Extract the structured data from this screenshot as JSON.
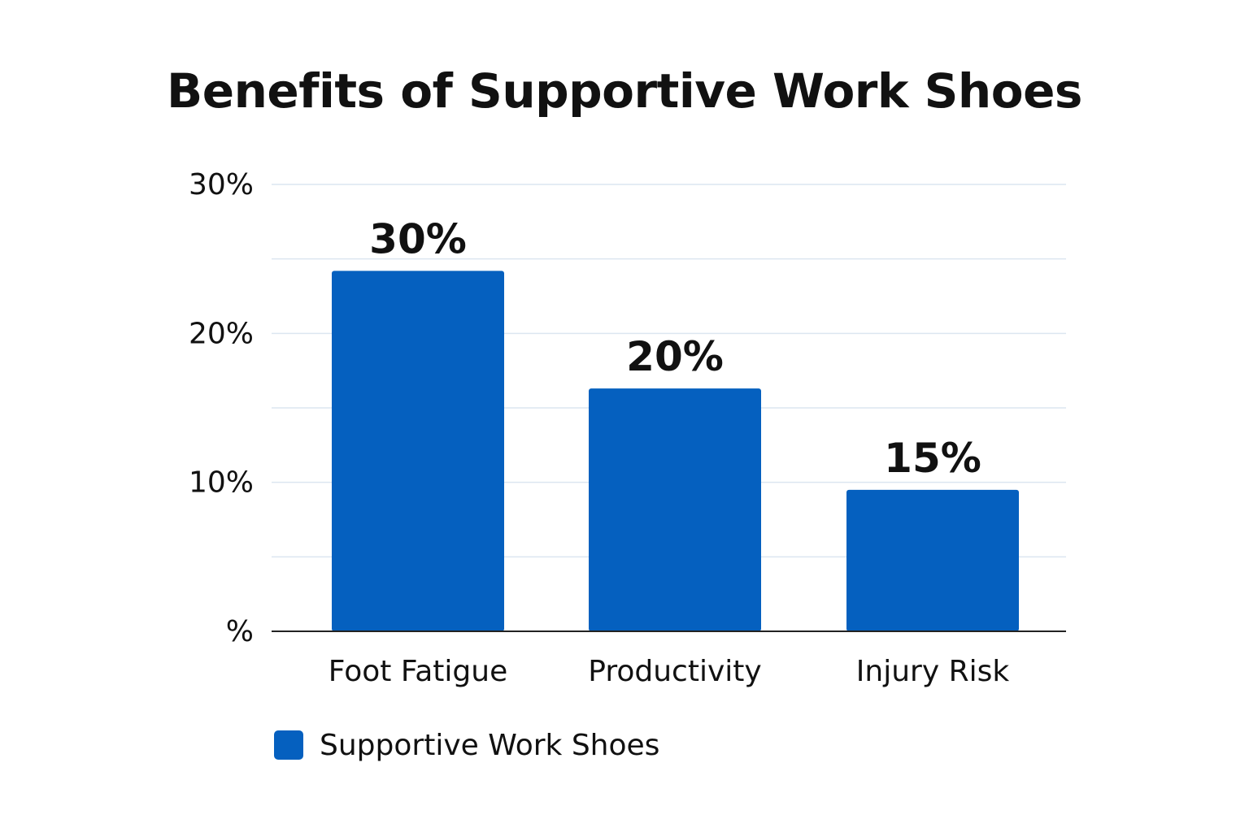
{
  "chart_data": {
    "type": "bar",
    "title": "Benefits of Supportive Work Shoes",
    "categories": [
      "Foot Fatigue",
      "Productivity",
      "Injury Risk"
    ],
    "series": [
      {
        "name": "Supportive Work Shoes",
        "values": [
          30,
          20,
          15
        ],
        "data_labels": [
          "30%",
          "20%",
          "15%"
        ]
      }
    ],
    "y_ticks": [
      {
        "value": 0,
        "label": "%"
      },
      {
        "value": 10,
        "label": "10%"
      },
      {
        "value": 20,
        "label": "20%"
      },
      {
        "value": 30,
        "label": "30%"
      }
    ],
    "ylim": [
      0,
      39
    ],
    "grid": true,
    "legend": "bottom-left",
    "colors": {
      "bar": "#0560BF",
      "grid": "#DCE6F0",
      "axis": "#222222",
      "text": "#111111"
    }
  }
}
